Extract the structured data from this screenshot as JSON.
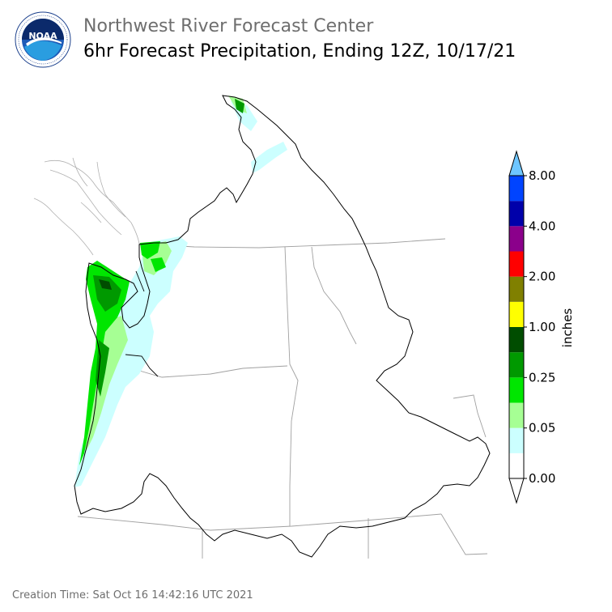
{
  "header": {
    "agency": "Northwest River Forecast Center",
    "product": "6hr Forecast Precipitation, Ending 12Z, 10/17/21"
  },
  "logo": {
    "icon": "noaa-logo-icon",
    "text": "NOAA",
    "ring_text": "NATIONAL OCEANIC AND ATMOSPHERIC ADMINISTRATION · U.S. DEPARTMENT OF COMMERCE"
  },
  "legend": {
    "unit": "inches",
    "labels": [
      "0.00",
      "0.05",
      "0.25",
      "1.00",
      "2.00",
      "4.00",
      "8.00"
    ],
    "colors": [
      "#ffffff",
      "#ccffff",
      "#a6ff94",
      "#00e600",
      "#009900",
      "#004d00",
      "#ffff00",
      "#808000",
      "#ff0000",
      "#8b008b",
      "#0000aa",
      "#0044ff",
      "#6ec6ff"
    ]
  },
  "footer": {
    "creation_time": "Creation Time: Sat Oct 16 14:42:16 UTC 2021"
  }
}
